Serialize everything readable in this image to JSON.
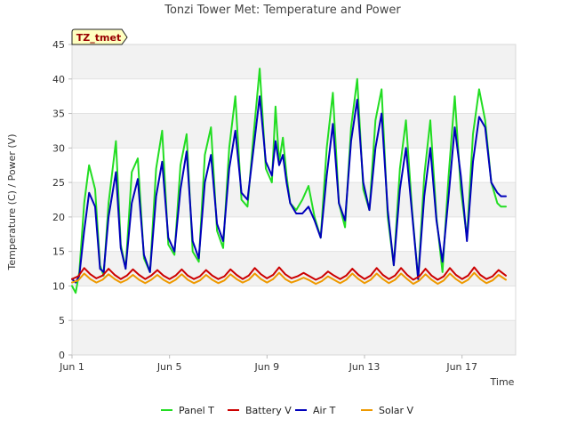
{
  "chart_data": {
    "type": "line",
    "title": "Tonzi Tower Met: Temperature and Power",
    "xlabel": "Time",
    "ylabel": "Temperature (C) / Power (V)",
    "tag": "TZ_tmet",
    "xlim": [
      1,
      19.2
    ],
    "ylim": [
      0,
      45
    ],
    "yticks": [
      0,
      5,
      10,
      15,
      20,
      25,
      30,
      35,
      40,
      45
    ],
    "xticks": [
      {
        "value": 1,
        "label": "Jun 1"
      },
      {
        "value": 5,
        "label": "Jun 5"
      },
      {
        "value": 9,
        "label": "Jun 9"
      },
      {
        "value": 13,
        "label": "Jun 13"
      },
      {
        "value": 17,
        "label": "Jun 17"
      }
    ],
    "grid": "alternating horizontal bands",
    "legend_position": "bottom",
    "colors": {
      "Panel T": "#22dd22",
      "Battery V": "#cc0000",
      "Air T": "#0000bb",
      "Solar V": "#ee9900"
    },
    "series": [
      {
        "name": "Panel T",
        "x": [
          1.0,
          1.15,
          1.3,
          1.5,
          1.7,
          1.95,
          2.15,
          2.3,
          2.5,
          2.8,
          3.0,
          3.2,
          3.45,
          3.7,
          3.95,
          4.2,
          4.45,
          4.7,
          4.95,
          5.2,
          5.45,
          5.7,
          5.95,
          6.2,
          6.45,
          6.7,
          6.95,
          7.2,
          7.45,
          7.7,
          7.95,
          8.2,
          8.45,
          8.7,
          8.95,
          9.2,
          9.35,
          9.5,
          9.65,
          9.8,
          9.95,
          10.2,
          10.45,
          10.7,
          10.95,
          11.2,
          11.45,
          11.7,
          11.95,
          12.2,
          12.45,
          12.7,
          12.95,
          13.2,
          13.45,
          13.7,
          13.95,
          14.2,
          14.45,
          14.7,
          14.95,
          15.2,
          15.45,
          15.7,
          15.95,
          16.2,
          16.45,
          16.7,
          16.95,
          17.2,
          17.45,
          17.7,
          17.95,
          18.2,
          18.45,
          18.6,
          18.7,
          18.8
        ],
        "values": [
          10.0,
          9.0,
          12.0,
          22.0,
          27.5,
          24.0,
          13.0,
          11.5,
          22.0,
          31.0,
          16.0,
          12.5,
          26.5,
          28.5,
          14.0,
          12.0,
          27.0,
          32.5,
          16.0,
          14.5,
          27.5,
          32.0,
          15.0,
          13.5,
          29.0,
          33.0,
          18.0,
          15.5,
          30.0,
          37.5,
          22.5,
          21.5,
          32.0,
          41.5,
          27.0,
          25.0,
          36.0,
          28.0,
          31.5,
          26.0,
          22.0,
          21.0,
          22.5,
          24.5,
          20.0,
          17.0,
          30.0,
          38.0,
          22.0,
          18.5,
          33.0,
          40.0,
          24.0,
          21.0,
          34.0,
          38.5,
          20.0,
          13.0,
          27.0,
          34.0,
          21.0,
          11.0,
          26.0,
          34.0,
          20.0,
          12.0,
          26.0,
          37.5,
          24.0,
          17.0,
          32.0,
          38.5,
          34.0,
          25.0,
          22.0,
          21.5,
          21.5,
          21.5
        ]
      },
      {
        "name": "Air T",
        "x": [
          1.0,
          1.15,
          1.3,
          1.5,
          1.7,
          1.95,
          2.15,
          2.3,
          2.5,
          2.8,
          3.0,
          3.2,
          3.45,
          3.7,
          3.95,
          4.2,
          4.45,
          4.7,
          4.95,
          5.2,
          5.45,
          5.7,
          5.95,
          6.2,
          6.45,
          6.7,
          6.95,
          7.2,
          7.45,
          7.7,
          7.95,
          8.2,
          8.45,
          8.7,
          8.95,
          9.2,
          9.35,
          9.5,
          9.65,
          9.8,
          9.95,
          10.2,
          10.45,
          10.7,
          10.95,
          11.2,
          11.45,
          11.7,
          11.95,
          12.2,
          12.45,
          12.7,
          12.95,
          13.2,
          13.45,
          13.7,
          13.95,
          14.2,
          14.45,
          14.7,
          14.95,
          15.2,
          15.45,
          15.7,
          15.95,
          16.2,
          16.45,
          16.7,
          16.95,
          17.2,
          17.45,
          17.7,
          17.95,
          18.2,
          18.45,
          18.6,
          18.7,
          18.8
        ],
        "values": [
          11.0,
          10.5,
          11.5,
          18.0,
          23.5,
          21.5,
          12.5,
          12.0,
          20.0,
          26.5,
          15.5,
          12.5,
          22.0,
          25.5,
          14.5,
          12.0,
          23.0,
          28.0,
          17.0,
          15.0,
          24.0,
          29.5,
          16.5,
          14.0,
          25.0,
          29.0,
          19.0,
          16.5,
          27.0,
          32.5,
          23.5,
          22.5,
          30.0,
          37.5,
          28.0,
          26.0,
          31.0,
          27.5,
          29.0,
          25.0,
          22.0,
          20.5,
          20.5,
          21.5,
          19.5,
          17.0,
          26.0,
          33.5,
          22.0,
          19.5,
          31.0,
          37.0,
          25.0,
          21.0,
          30.0,
          35.0,
          21.0,
          13.0,
          24.0,
          30.0,
          20.5,
          11.0,
          23.0,
          30.0,
          19.5,
          13.5,
          23.0,
          33.0,
          26.0,
          16.5,
          28.0,
          34.5,
          33.0,
          25.0,
          23.5,
          23.0,
          23.0,
          23.0
        ]
      },
      {
        "name": "Battery V",
        "x": [
          1.0,
          1.25,
          1.5,
          1.75,
          2.0,
          2.25,
          2.5,
          2.75,
          3.0,
          3.25,
          3.5,
          3.75,
          4.0,
          4.25,
          4.5,
          4.75,
          5.0,
          5.25,
          5.5,
          5.75,
          6.0,
          6.25,
          6.5,
          6.75,
          7.0,
          7.25,
          7.5,
          7.75,
          8.0,
          8.25,
          8.5,
          8.75,
          9.0,
          9.25,
          9.5,
          9.75,
          10.0,
          10.25,
          10.5,
          10.75,
          11.0,
          11.25,
          11.5,
          11.75,
          12.0,
          12.25,
          12.5,
          12.75,
          13.0,
          13.25,
          13.5,
          13.75,
          14.0,
          14.25,
          14.5,
          14.75,
          15.0,
          15.25,
          15.5,
          15.75,
          16.0,
          16.25,
          16.5,
          16.75,
          17.0,
          17.25,
          17.5,
          17.75,
          18.0,
          18.25,
          18.5,
          18.8
        ],
        "values": [
          11.0,
          11.4,
          12.6,
          11.7,
          11.1,
          11.5,
          12.5,
          11.6,
          11.0,
          11.5,
          12.4,
          11.6,
          11.0,
          11.5,
          12.3,
          11.5,
          11.0,
          11.5,
          12.4,
          11.5,
          11.0,
          11.4,
          12.3,
          11.5,
          11.0,
          11.4,
          12.4,
          11.6,
          11.0,
          11.5,
          12.6,
          11.7,
          11.1,
          11.6,
          12.7,
          11.7,
          11.1,
          11.4,
          11.9,
          11.4,
          10.9,
          11.3,
          12.1,
          11.5,
          11.0,
          11.5,
          12.5,
          11.6,
          11.0,
          11.5,
          12.6,
          11.6,
          11.0,
          11.5,
          12.6,
          11.6,
          10.9,
          11.4,
          12.5,
          11.5,
          10.9,
          11.4,
          12.6,
          11.6,
          11.0,
          11.5,
          12.7,
          11.6,
          11.0,
          11.4,
          12.3,
          11.5
        ]
      },
      {
        "name": "Solar V",
        "x": [
          1.0,
          1.25,
          1.5,
          1.75,
          2.0,
          2.25,
          2.5,
          2.75,
          3.0,
          3.25,
          3.5,
          3.75,
          4.0,
          4.25,
          4.5,
          4.75,
          5.0,
          5.25,
          5.5,
          5.75,
          6.0,
          6.25,
          6.5,
          6.75,
          7.0,
          7.25,
          7.5,
          7.75,
          8.0,
          8.25,
          8.5,
          8.75,
          9.0,
          9.25,
          9.5,
          9.75,
          10.0,
          10.25,
          10.5,
          10.75,
          11.0,
          11.25,
          11.5,
          11.75,
          12.0,
          12.25,
          12.5,
          12.75,
          13.0,
          13.25,
          13.5,
          13.75,
          14.0,
          14.25,
          14.5,
          14.75,
          15.0,
          15.25,
          15.5,
          15.75,
          16.0,
          16.25,
          16.5,
          16.75,
          17.0,
          17.25,
          17.5,
          17.75,
          18.0,
          18.25,
          18.5,
          18.8
        ],
        "values": [
          10.5,
          10.8,
          11.8,
          11.0,
          10.5,
          10.9,
          11.7,
          11.0,
          10.5,
          10.9,
          11.6,
          10.9,
          10.4,
          10.9,
          11.6,
          10.9,
          10.4,
          10.9,
          11.7,
          10.9,
          10.4,
          10.8,
          11.6,
          10.9,
          10.4,
          10.8,
          11.7,
          11.0,
          10.5,
          10.9,
          11.8,
          11.0,
          10.5,
          11.0,
          11.9,
          11.0,
          10.5,
          10.8,
          11.2,
          10.8,
          10.3,
          10.7,
          11.4,
          10.9,
          10.4,
          10.9,
          11.8,
          11.0,
          10.4,
          10.9,
          11.8,
          11.0,
          10.4,
          10.9,
          11.8,
          11.0,
          10.3,
          10.8,
          11.7,
          10.9,
          10.3,
          10.8,
          11.8,
          11.0,
          10.4,
          10.9,
          11.9,
          11.0,
          10.4,
          10.8,
          11.6,
          10.9
        ]
      }
    ]
  }
}
